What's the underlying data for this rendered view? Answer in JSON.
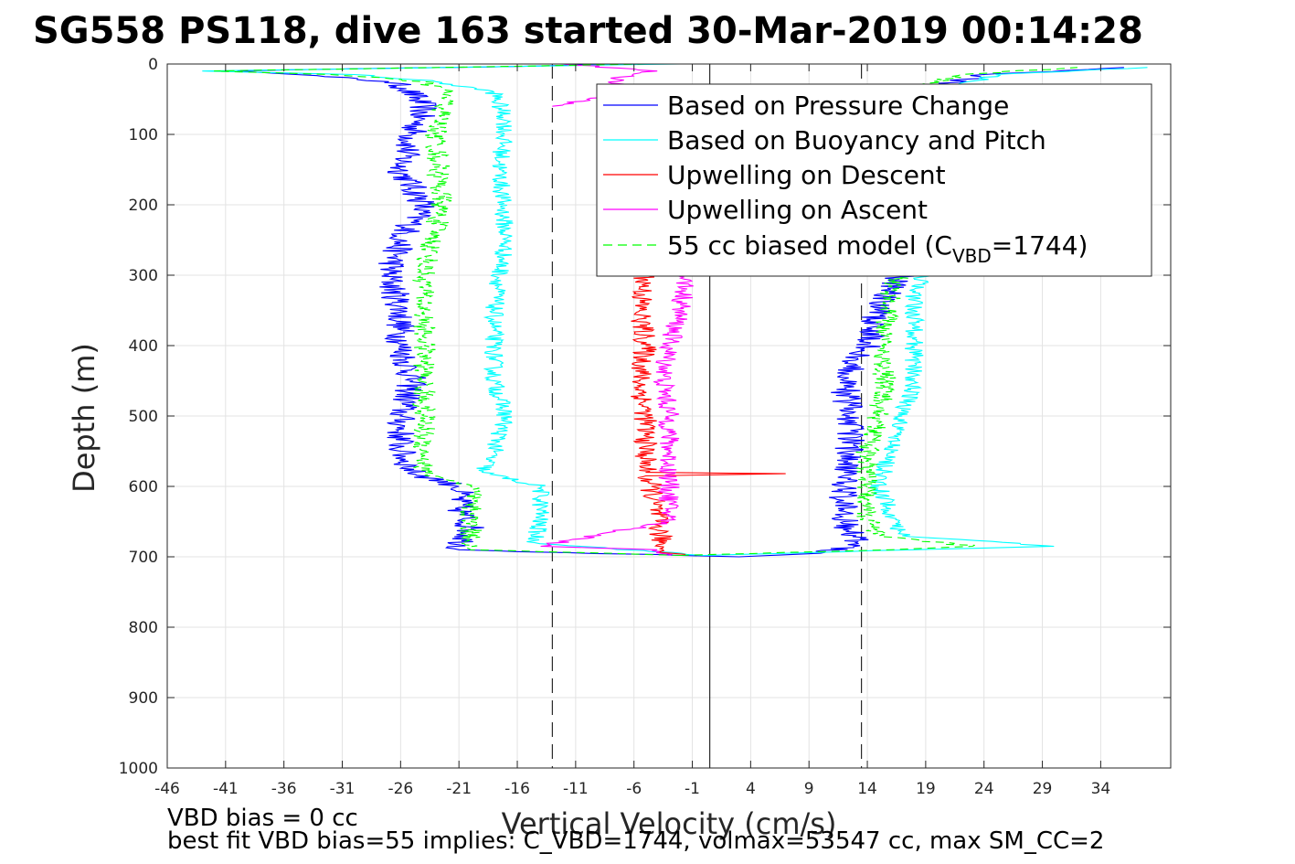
{
  "chart_data": {
    "type": "line",
    "title": "SG558 PS118, dive 163 started 30-Mar-2019 00:14:28",
    "xlabel": "Vertical Velocity (cm/s)",
    "ylabel": "Depth (m)",
    "xlim": [
      -46,
      40
    ],
    "ylim": [
      0,
      1000
    ],
    "y_reversed": true,
    "grid": true,
    "x_ticks": [
      "-46",
      "-41",
      "-36",
      "-31",
      "-26",
      "-21",
      "-16",
      "-11",
      "-6",
      "-1",
      "4",
      "9",
      "14",
      "19",
      "24",
      "29",
      "34"
    ],
    "y_ticks": [
      "0",
      "100",
      "200",
      "300",
      "400",
      "500",
      "600",
      "700",
      "800",
      "900",
      "1000"
    ],
    "legend_position": "top-right",
    "legend": [
      {
        "label": "Based on Pressure Change",
        "color": "#0000ff",
        "style": "solid"
      },
      {
        "label": "Based on Buoyancy and Pitch",
        "color": "#00ffff",
        "style": "solid"
      },
      {
        "label": "Upwelling on Descent",
        "color": "#ff0000",
        "style": "solid"
      },
      {
        "label": "Upwelling on Ascent",
        "color": "#ff00ff",
        "style": "solid"
      },
      {
        "label_pre": "55 cc biased model (C",
        "label_sub": "VBD",
        "label_post": "=1744)",
        "color": "#00ff00",
        "style": "dashed"
      }
    ],
    "reference_lines": [
      {
        "x": -13,
        "style": "dashed",
        "color": "#000000"
      },
      {
        "x": 0.5,
        "style": "solid",
        "color": "#000000"
      },
      {
        "x": 13.5,
        "style": "dashed",
        "color": "#000000"
      }
    ],
    "series": [
      {
        "name": "Based on Pressure Change",
        "color": "#0000ff",
        "segments": [
          {
            "depth": [
              0,
              10,
              15,
              25,
              35,
              60,
              100,
              150,
              200,
              250,
              300,
              350,
              400,
              450,
              500,
              550,
              580,
              600,
              630,
              660,
              690,
              698
            ],
            "velocity": [
              -5,
              -40,
              -35,
              -27,
              -25.5,
              -24,
              -25,
              -26,
              -24,
              -26,
              -27,
              -26,
              -26,
              -25,
              -26,
              -26,
              -25,
              -21,
              -21,
              -20,
              -21,
              -2
            ]
          },
          {
            "depth": [
              698,
              700,
              695,
              680,
              650,
              620,
              600,
              580,
              550,
              500,
              450,
              400,
              350,
              320,
              300
            ],
            "velocity": [
              -2,
              3,
              10,
              13,
              12,
              12,
              12,
              12,
              12.5,
              12.5,
              12,
              14,
              15,
              16,
              17
            ]
          },
          {
            "depth": [
              60,
              30,
              15,
              5
            ],
            "velocity": [
              22,
              20,
              24,
              36
            ]
          }
        ],
        "noise": 1.3
      },
      {
        "name": "Based on Buoyancy and Pitch",
        "color": "#00ffff",
        "segments": [
          {
            "depth": [
              0,
              10,
              15,
              25,
              40,
              80,
              150,
              250,
              350,
              450,
              500,
              550,
              580,
              600,
              640,
              680,
              698
            ],
            "velocity": [
              -2,
              -43,
              -30,
              -23,
              -18,
              -17,
              -17.5,
              -17,
              -18,
              -18,
              -17,
              -18,
              -19,
              -14,
              -14,
              -14.5,
              0
            ]
          },
          {
            "depth": [
              698,
              690,
              685,
              670,
              640,
              600,
              550,
              500,
              450,
              400,
              350,
              320,
              300
            ],
            "velocity": [
              0,
              18,
              30,
              17,
              16,
              15,
              16,
              17,
              18,
              18,
              18,
              18,
              19
            ]
          },
          {
            "depth": [
              60,
              30,
              15,
              5
            ],
            "velocity": [
              23,
              22,
              25,
              38
            ]
          }
        ],
        "noise": 0.8
      },
      {
        "name": "Upwelling on Descent",
        "color": "#ff0000",
        "segments": [
          {
            "depth": [
              300,
              350,
              400,
              450,
              500,
              550,
              580,
              582,
              585,
              600,
              650,
              690,
              698
            ],
            "velocity": [
              -5,
              -5.5,
              -5,
              -5.5,
              -5,
              -5,
              -5,
              7,
              -5,
              -4.5,
              -4,
              -3.5,
              -2
            ]
          }
        ],
        "noise": 1.0
      },
      {
        "name": "Upwelling on Ascent",
        "color": "#ff00ff",
        "segments": [
          {
            "depth": [
              300,
              350,
              400,
              450,
              500,
              550,
              600,
              650,
              685,
              690,
              698
            ],
            "velocity": [
              -1.5,
              -2,
              -3,
              -3.5,
              -3,
              -3,
              -3,
              -3,
              -14,
              -4,
              -3
            ]
          },
          {
            "depth": [
              0,
              10,
              20,
              40,
              60
            ],
            "velocity": [
              -12,
              -4,
              -8,
              -6,
              -13
            ]
          }
        ],
        "noise": 0.9
      },
      {
        "name": "55 cc biased model (CVBD=1744)",
        "color": "#00ff00",
        "dashed": true,
        "segments": [
          {
            "depth": [
              0,
              10,
              15,
              25,
              40,
              100,
              200,
              300,
              400,
              500,
              580,
              600,
              650,
              690,
              698
            ],
            "velocity": [
              -5,
              -42,
              -32,
              -24,
              -22,
              -23,
              -22.5,
              -24,
              -24,
              -24,
              -24,
              -20,
              -20,
              -20,
              -2
            ]
          },
          {
            "depth": [
              698,
              690,
              685,
              670,
              640,
              600,
              550,
              500,
              450,
              400,
              350,
              320,
              300
            ],
            "velocity": [
              -2,
              16,
              23,
              15,
              14,
              14,
              14,
              15,
              15.5,
              15,
              16,
              16,
              17
            ]
          },
          {
            "depth": [
              60,
              30,
              15,
              5
            ],
            "velocity": [
              21,
              19,
              22,
              32
            ]
          }
        ],
        "noise": 1.0
      }
    ]
  },
  "footer": {
    "line1": "VBD bias = 0 cc",
    "line2": "best fit VBD bias=55 implies: C_VBD=1744, volmax=53547 cc, max SM_CC=2"
  }
}
